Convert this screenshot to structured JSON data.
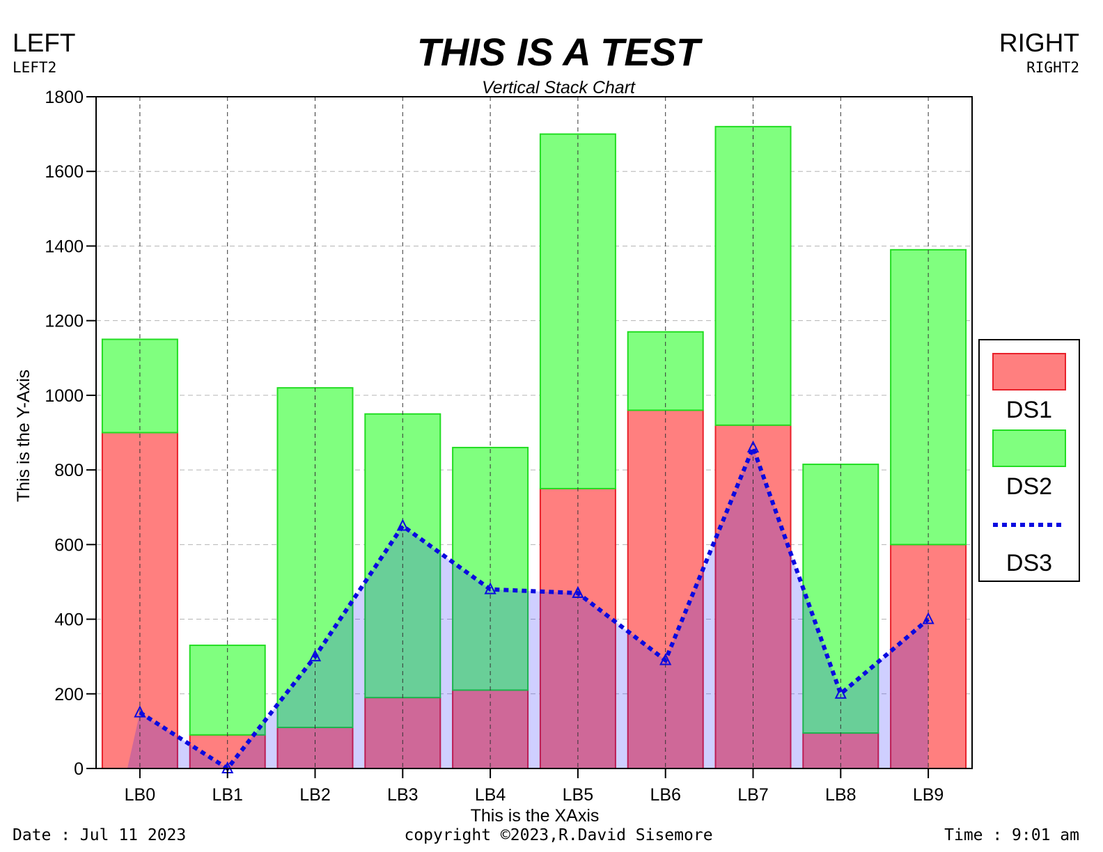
{
  "header": {
    "title": "THIS IS A TEST",
    "subtitle": "Vertical Stack Chart",
    "left": "LEFT",
    "left2": "LEFT2",
    "right": "RIGHT",
    "right2": "RIGHT2"
  },
  "footer": {
    "date": "Date : Jul 11 2023",
    "copyright": "copyright ©2023,R.David Sisemore",
    "time": "Time : 9:01 am"
  },
  "chart_data": {
    "type": "bar",
    "stacked": true,
    "title": "THIS IS A TEST",
    "subtitle": "Vertical Stack Chart",
    "xlabel": "This is the XAxis",
    "ylabel": "This is the Y-Axis",
    "ylim": [
      0,
      1800
    ],
    "yticks": [
      0,
      200,
      400,
      600,
      800,
      1000,
      1200,
      1400,
      1600,
      1800
    ],
    "grid": true,
    "legend_position": "right",
    "categories": [
      "LB0",
      "LB1",
      "LB2",
      "LB3",
      "LB4",
      "LB5",
      "LB6",
      "LB7",
      "LB8",
      "LB9"
    ],
    "series": [
      {
        "name": "DS1",
        "kind": "bar",
        "color": "#ff7f7f",
        "edge": "#e8202a",
        "values": [
          900,
          90,
          110,
          190,
          210,
          750,
          960,
          920,
          95,
          600
        ]
      },
      {
        "name": "DS2",
        "kind": "bar",
        "color": "#80ff7f",
        "edge": "#22dd22",
        "values": [
          250,
          240,
          910,
          760,
          650,
          950,
          210,
          800,
          720,
          790
        ]
      },
      {
        "name": "DS3",
        "kind": "line",
        "color": "#0a0ae0",
        "fill": "#1010ff",
        "values": [
          150,
          0,
          300,
          650,
          480,
          470,
          290,
          860,
          200,
          400
        ]
      }
    ]
  }
}
